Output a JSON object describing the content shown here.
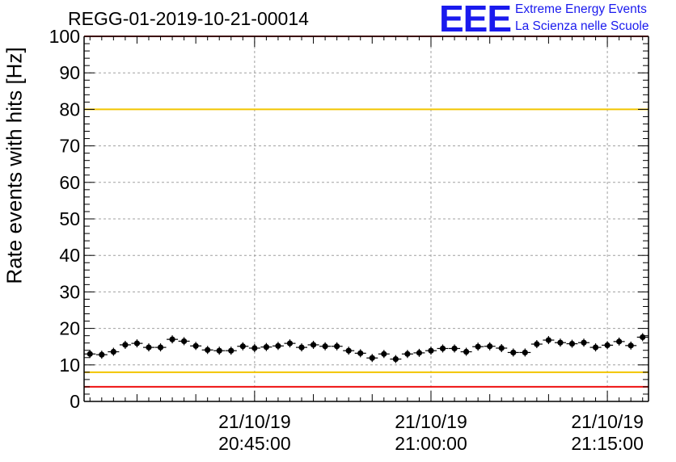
{
  "header": {
    "logo_text": "EEE",
    "tagline_1": "Extreme Energy Events",
    "tagline_2": "La Scienza nelle Scuole"
  },
  "colors": {
    "points": "#000000",
    "red_lines": "#ee1111",
    "yellow_lines": "#f2c500",
    "logo_blue": "#1a1aee",
    "grid": "#a0a0a0"
  },
  "chart_data": {
    "type": "scatter",
    "title": "REGG-01-2019-10-21-00014",
    "ylabel": "Rate events with hits [Hz]",
    "xlabel": "",
    "ylim": [
      0,
      100
    ],
    "y_ticks": [
      0,
      10,
      20,
      30,
      40,
      50,
      60,
      70,
      80,
      90,
      100
    ],
    "xlim": [
      "21/10/19 20:30:30",
      "21/10/19 21:18:30"
    ],
    "x_ticks": [
      {
        "date": "21/10/19",
        "time": "20:45:00"
      },
      {
        "date": "21/10/19",
        "time": "21:00:00"
      },
      {
        "date": "21/10/19",
        "time": "21:15:00"
      }
    ],
    "grid": true,
    "reference_lines": [
      {
        "y": 4,
        "color": "red"
      },
      {
        "y": 8,
        "color": "yellow"
      },
      {
        "y": 80,
        "color": "yellow"
      },
      {
        "y": 100,
        "color": "red"
      }
    ],
    "series": [
      {
        "x": [
          "20:31:00",
          "20:32:00",
          "20:33:00",
          "20:34:00",
          "20:35:00",
          "20:36:00",
          "20:37:00",
          "20:38:00",
          "20:39:00",
          "20:40:00",
          "20:41:00",
          "20:42:00",
          "20:43:00",
          "20:44:00",
          "20:45:00",
          "20:46:00",
          "20:47:00",
          "20:48:00",
          "20:49:00",
          "20:50:00",
          "20:51:00",
          "20:52:00",
          "20:53:00",
          "20:54:00",
          "20:55:00",
          "20:56:00",
          "20:57:00",
          "20:58:00",
          "20:59:00",
          "21:00:00",
          "21:01:00",
          "21:02:00",
          "21:03:00",
          "21:04:00",
          "21:05:00",
          "21:06:00",
          "21:07:00",
          "21:08:00",
          "21:09:00",
          "21:10:00",
          "21:11:00",
          "21:12:00",
          "21:13:00",
          "21:14:00",
          "21:15:00",
          "21:16:00",
          "21:17:00",
          "21:18:00"
        ],
        "y": [
          13.0,
          12.8,
          13.6,
          15.5,
          15.9,
          14.8,
          14.8,
          17.0,
          16.5,
          15.2,
          14.1,
          13.9,
          13.9,
          15.1,
          14.6,
          14.9,
          15.2,
          15.9,
          14.8,
          15.5,
          15.1,
          15.1,
          13.9,
          13.2,
          11.9,
          13.0,
          11.6,
          13.0,
          13.3,
          13.9,
          14.5,
          14.5,
          13.6,
          15.0,
          15.1,
          14.6,
          13.4,
          13.4,
          15.7,
          16.8,
          16.1,
          15.8,
          16.1,
          14.8,
          15.4,
          16.4,
          15.3,
          17.6
        ]
      }
    ]
  }
}
